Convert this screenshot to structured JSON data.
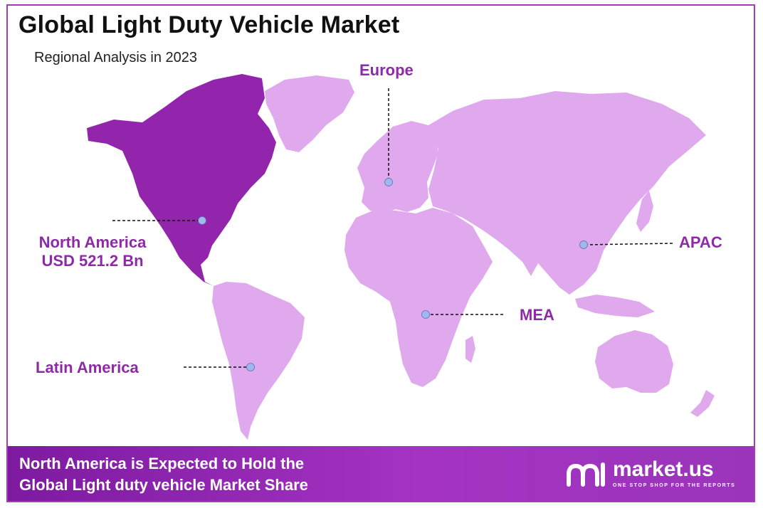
{
  "title": "Global Light Duty Vehicle Market",
  "subtitle": "Regional Analysis in 2023",
  "colors": {
    "highlight_region": "#9325ad",
    "other_regions": "#e0a9ee",
    "label": "#8e2aa8",
    "marker": "#9fb8ee",
    "border": "#a43bb8"
  },
  "regions": {
    "europe": {
      "label": "Europe"
    },
    "north_america": {
      "label_line1": "North America",
      "label_line2": "USD 521.2 Bn"
    },
    "apac": {
      "label": "APAC"
    },
    "mea": {
      "label": "MEA"
    },
    "latin_america": {
      "label": "Latin America"
    }
  },
  "footer": {
    "line1": "North America is Expected to Hold the",
    "line2": "Global Light duty vehicle Market Share",
    "brand": "market.us",
    "tagline": "ONE STOP SHOP FOR THE REPORTS"
  }
}
